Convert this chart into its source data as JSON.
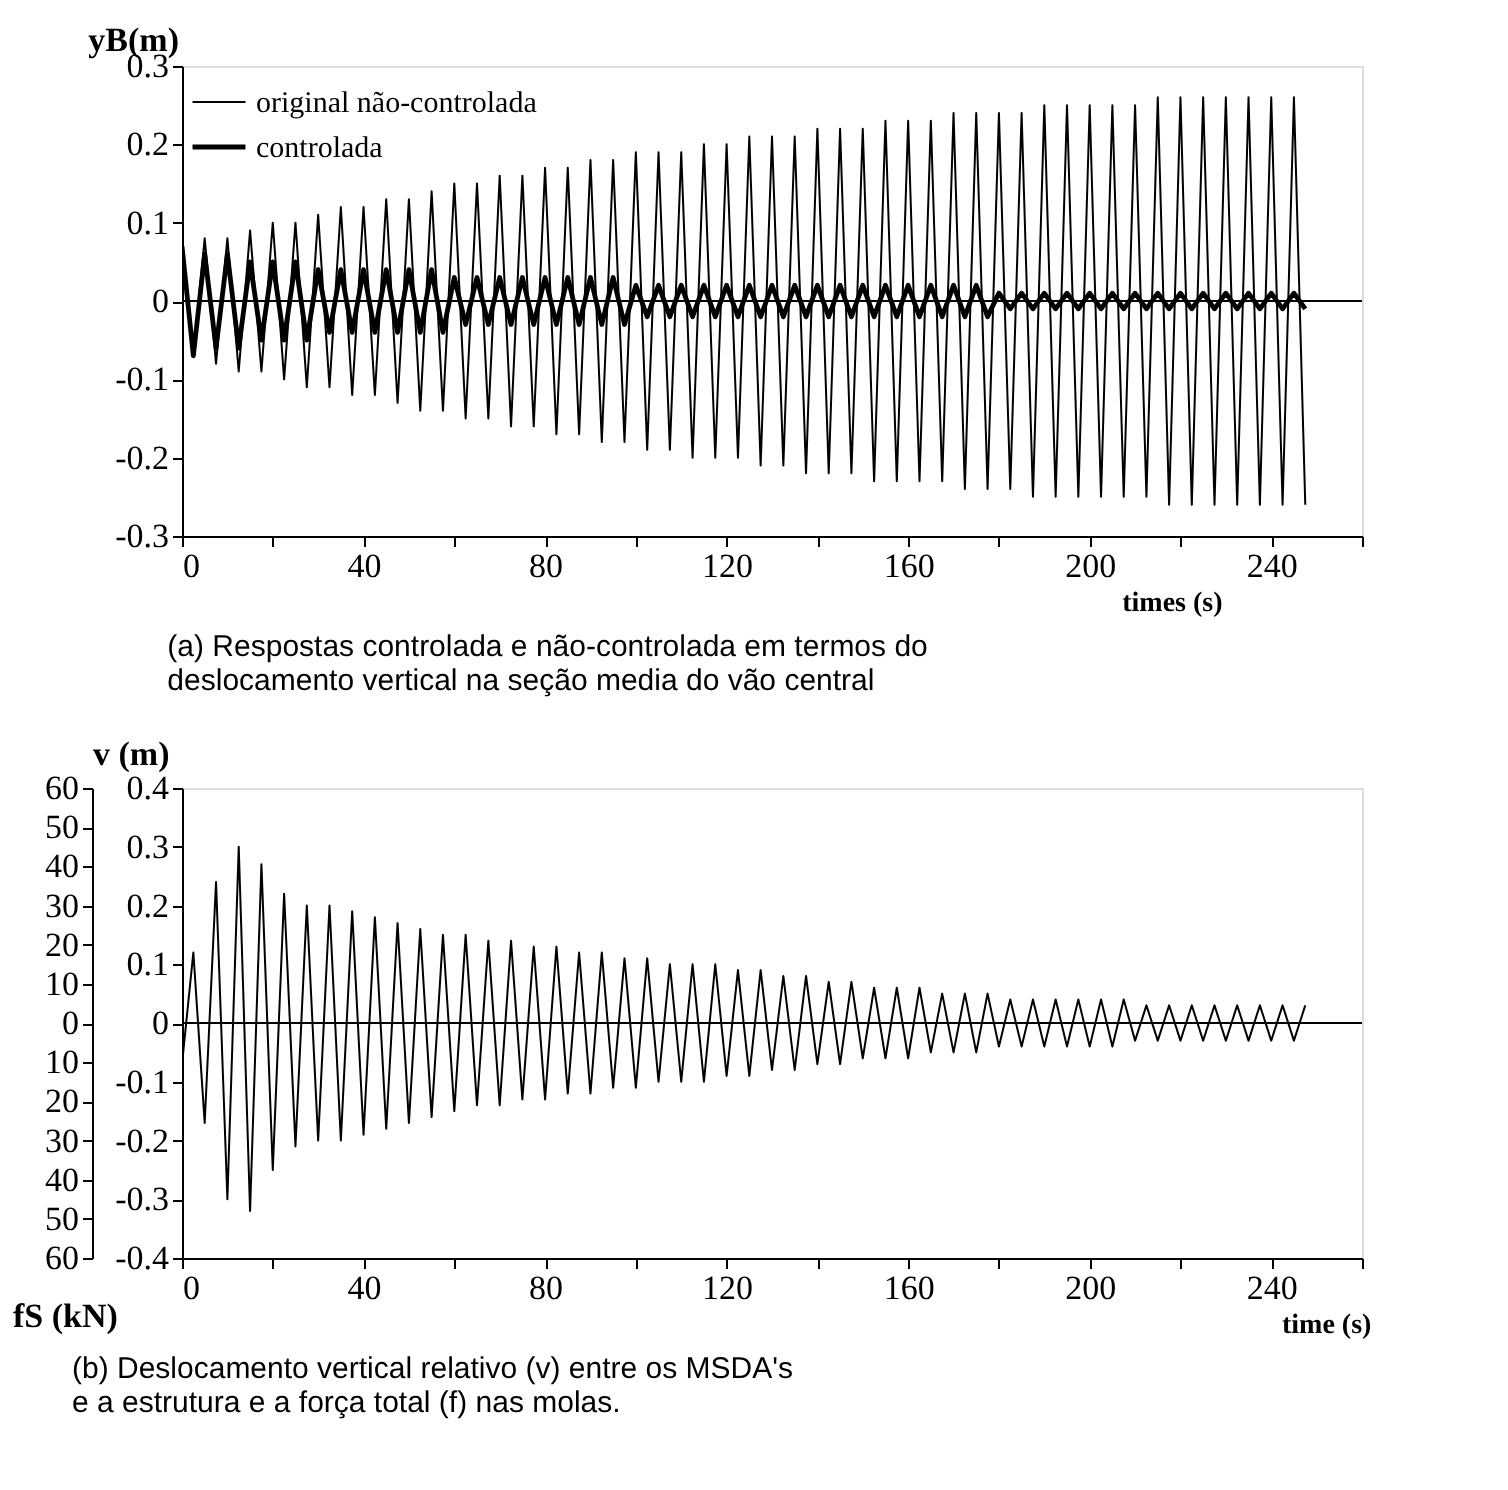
{
  "chart_data": [
    {
      "type": "line",
      "xlabel": "times (s)",
      "ylabel": "yB(m)",
      "legend": "top left",
      "grid": false,
      "xlim": [
        0,
        260
      ],
      "ylim": [
        -0.3,
        0.3
      ],
      "xticks": [
        0,
        {
          "value": 20,
          "label": null
        },
        40,
        {
          "value": 60,
          "label": null
        },
        80,
        {
          "value": 100,
          "label": null
        },
        120,
        {
          "value": 140,
          "label": null
        },
        160,
        {
          "value": 180,
          "label": null
        },
        200,
        {
          "value": 220,
          "label": null
        },
        240,
        {
          "value": 260,
          "label": null
        }
      ],
      "yticks": [
        -0.3,
        -0.2,
        -0.1,
        0,
        0.1,
        0.2,
        0.3
      ],
      "ref_lines": [
        {
          "axis": "y",
          "value": 0,
          "color": "#000000"
        }
      ],
      "annotations": [
        "(a)  Respostas controlada e não-controlada em termos do\n      deslocamento vertical na seção media do vão central"
      ],
      "x": [
        0,
        2.5,
        5,
        7.5,
        10,
        12.5,
        15,
        17.5,
        20,
        22.5,
        25,
        27.5,
        30,
        32.5,
        35,
        37.5,
        40,
        42.5,
        45,
        47.5,
        50,
        52.5,
        55,
        57.5,
        60,
        62.5,
        65,
        67.5,
        70,
        72.5,
        75,
        77.5,
        80,
        82.5,
        85,
        87.5,
        90,
        92.5,
        95,
        97.5,
        100,
        102.5,
        105,
        107.5,
        110,
        112.5,
        115,
        117.5,
        120,
        122.5,
        125,
        127.5,
        130,
        132.5,
        135,
        137.5,
        140,
        142.5,
        145,
        147.5,
        150,
        152.5,
        155,
        157.5,
        160,
        162.5,
        165,
        167.5,
        170,
        172.5,
        175,
        177.5,
        180,
        182.5,
        185,
        187.5,
        190,
        192.5,
        195,
        197.5,
        200,
        202.5,
        205,
        207.5,
        210,
        212.5,
        215,
        217.5,
        220,
        222.5,
        225,
        227.5,
        230,
        232.5,
        235,
        237.5,
        240,
        242.5,
        245,
        247.5
      ],
      "series": [
        {
          "name": "original não-controlada",
          "color": "#000000",
          "values": [
            0.07,
            -0.07,
            0.08,
            -0.08,
            0.08,
            -0.09,
            0.09,
            -0.09,
            0.1,
            -0.1,
            0.1,
            -0.11,
            0.11,
            -0.11,
            0.12,
            -0.12,
            0.12,
            -0.12,
            0.13,
            -0.13,
            0.13,
            -0.14,
            0.14,
            -0.14,
            0.15,
            -0.15,
            0.15,
            -0.15,
            0.16,
            -0.16,
            0.16,
            -0.16,
            0.17,
            -0.17,
            0.17,
            -0.17,
            0.18,
            -0.18,
            0.18,
            -0.18,
            0.19,
            -0.19,
            0.19,
            -0.19,
            0.19,
            -0.2,
            0.2,
            -0.2,
            0.2,
            -0.2,
            0.21,
            -0.21,
            0.21,
            -0.21,
            0.21,
            -0.22,
            0.22,
            -0.22,
            0.22,
            -0.22,
            0.22,
            -0.23,
            0.23,
            -0.23,
            0.23,
            -0.23,
            0.23,
            -0.23,
            0.24,
            -0.24,
            0.24,
            -0.24,
            0.24,
            -0.24,
            0.24,
            -0.25,
            0.25,
            -0.25,
            0.25,
            -0.25,
            0.25,
            -0.25,
            0.25,
            -0.25,
            0.25,
            -0.25,
            0.26,
            -0.26,
            0.26,
            -0.26,
            0.26,
            -0.26,
            0.26,
            -0.26,
            0.26,
            -0.26,
            0.26,
            -0.26,
            0.26,
            -0.26
          ]
        },
        {
          "name": "controlada",
          "color": "#000000",
          "values": [
            0.07,
            -0.07,
            0.06,
            -0.06,
            0.06,
            -0.06,
            0.05,
            -0.05,
            0.05,
            -0.05,
            0.05,
            -0.05,
            0.04,
            -0.04,
            0.04,
            -0.04,
            0.04,
            -0.04,
            0.04,
            -0.04,
            0.04,
            -0.04,
            0.04,
            -0.04,
            0.03,
            -0.03,
            0.03,
            -0.03,
            0.03,
            -0.03,
            0.03,
            -0.03,
            0.03,
            -0.03,
            0.03,
            -0.03,
            0.03,
            -0.03,
            0.03,
            -0.03,
            0.02,
            -0.02,
            0.02,
            -0.02,
            0.02,
            -0.02,
            0.02,
            -0.02,
            0.02,
            -0.02,
            0.02,
            -0.02,
            0.02,
            -0.02,
            0.02,
            -0.02,
            0.02,
            -0.02,
            0.02,
            -0.02,
            0.02,
            -0.02,
            0.02,
            -0.02,
            0.02,
            -0.02,
            0.02,
            -0.02,
            0.02,
            -0.02,
            0.02,
            -0.02,
            0.01,
            -0.01,
            0.01,
            -0.01,
            0.01,
            -0.01,
            0.01,
            -0.01,
            0.01,
            -0.01,
            0.01,
            -0.01,
            0.01,
            -0.01,
            0.01,
            -0.01,
            0.01,
            -0.01,
            0.01,
            -0.01,
            0.01,
            -0.01,
            0.01,
            -0.01,
            0.01,
            -0.01,
            0.01,
            -0.01
          ]
        }
      ]
    },
    {
      "type": "line",
      "xlabel": "time (s)",
      "ylabel": "v (m)",
      "y2label": "fS (kN)",
      "grid": false,
      "xlim": [
        0,
        260
      ],
      "ylim": [
        -0.4,
        0.4
      ],
      "y2lim": [
        -60,
        60
      ],
      "xticks": [
        0,
        {
          "value": 20,
          "label": null
        },
        40,
        {
          "value": 60,
          "label": null
        },
        80,
        {
          "value": 100,
          "label": null
        },
        120,
        {
          "value": 140,
          "label": null
        },
        160,
        {
          "value": 180,
          "label": null
        },
        200,
        {
          "value": 220,
          "label": null
        },
        240,
        {
          "value": 260,
          "label": null
        }
      ],
      "yticks": [
        -0.4,
        -0.3,
        -0.2,
        -0.1,
        0,
        0.1,
        0.2,
        0.3,
        0.4
      ],
      "y2ticks": [
        {
          "value": -60,
          "label": "60"
        },
        {
          "value": -50,
          "label": "50"
        },
        {
          "value": -40,
          "label": "40"
        },
        {
          "value": -30,
          "label": "30"
        },
        {
          "value": -20,
          "label": "20"
        },
        {
          "value": -10,
          "label": "10"
        },
        0,
        10,
        20,
        30,
        40,
        50,
        60
      ],
      "ref_lines": [
        {
          "axis": "y",
          "value": 0,
          "color": "#000000"
        }
      ],
      "annotations": [
        "(b) Deslocamento vertical relativo (v) entre os MSDA's\n     e a estrutura  e a força total (f) nas molas."
      ],
      "x": [
        0,
        2.5,
        5,
        7.5,
        10,
        12.5,
        15,
        17.5,
        20,
        22.5,
        25,
        27.5,
        30,
        32.5,
        35,
        37.5,
        40,
        42.5,
        45,
        47.5,
        50,
        52.5,
        55,
        57.5,
        60,
        62.5,
        65,
        67.5,
        70,
        72.5,
        75,
        77.5,
        80,
        82.5,
        85,
        87.5,
        90,
        92.5,
        95,
        97.5,
        100,
        102.5,
        105,
        107.5,
        110,
        112.5,
        115,
        117.5,
        120,
        122.5,
        125,
        127.5,
        130,
        132.5,
        135,
        137.5,
        140,
        142.5,
        145,
        147.5,
        150,
        152.5,
        155,
        157.5,
        160,
        162.5,
        165,
        167.5,
        170,
        172.5,
        175,
        177.5,
        180,
        182.5,
        185,
        187.5,
        190,
        192.5,
        195,
        197.5,
        200,
        202.5,
        205,
        207.5,
        210,
        212.5,
        215,
        217.5,
        220,
        222.5,
        225,
        227.5,
        230,
        232.5,
        235,
        237.5,
        240,
        242.5,
        245,
        247.5
      ],
      "series": [
        {
          "color": "#000000",
          "values": [
            -0.07,
            0.12,
            -0.17,
            0.24,
            -0.3,
            0.3,
            -0.32,
            0.27,
            -0.25,
            0.22,
            -0.21,
            0.2,
            -0.2,
            0.2,
            -0.2,
            0.19,
            -0.19,
            0.18,
            -0.18,
            0.17,
            -0.17,
            0.16,
            -0.16,
            0.15,
            -0.15,
            0.15,
            -0.14,
            0.14,
            -0.14,
            0.14,
            -0.13,
            0.13,
            -0.13,
            0.13,
            -0.12,
            0.12,
            -0.12,
            0.12,
            -0.11,
            0.11,
            -0.11,
            0.11,
            -0.1,
            0.1,
            -0.1,
            0.1,
            -0.1,
            0.1,
            -0.09,
            0.09,
            -0.09,
            0.09,
            -0.08,
            0.08,
            -0.08,
            0.08,
            -0.07,
            0.07,
            -0.07,
            0.07,
            -0.06,
            0.06,
            -0.06,
            0.06,
            -0.06,
            0.06,
            -0.05,
            0.05,
            -0.05,
            0.05,
            -0.05,
            0.05,
            -0.04,
            0.04,
            -0.04,
            0.04,
            -0.04,
            0.04,
            -0.04,
            0.04,
            -0.04,
            0.04,
            -0.04,
            0.04,
            -0.03,
            0.03,
            -0.03,
            0.03,
            -0.03,
            0.03,
            -0.03,
            0.03,
            -0.03,
            0.03,
            -0.03,
            0.03,
            -0.03,
            0.03,
            -0.03,
            0.03
          ]
        }
      ]
    }
  ]
}
